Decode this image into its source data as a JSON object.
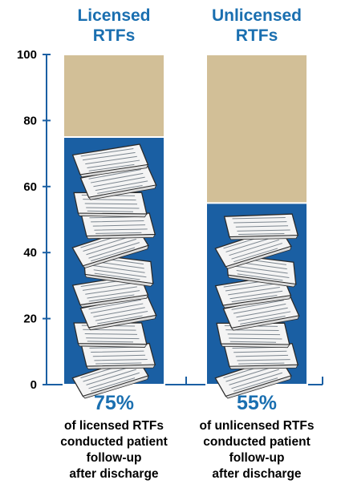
{
  "chart_data": {
    "type": "bar",
    "stacked_to": 100,
    "categories": [
      "Licensed RTFs",
      "Unlicensed RTFs"
    ],
    "column_titles": [
      [
        "Licensed",
        "RTFs"
      ],
      [
        "Unlicensed",
        "RTFs"
      ]
    ],
    "values": [
      75,
      55
    ],
    "value_labels": [
      "75%",
      "55%"
    ],
    "captions": [
      [
        "of licensed RTFs",
        "conducted patient",
        "follow-up",
        "after discharge"
      ],
      [
        "of unlicensed RTFs",
        "conducted patient",
        "follow-up",
        "after discharge"
      ]
    ],
    "ylim": [
      0,
      100
    ],
    "yticks": [
      0,
      20,
      40,
      60,
      80,
      100
    ],
    "ytick_labels": [
      "0",
      "20",
      "40",
      "60",
      "80",
      "100"
    ],
    "grid": false,
    "colors": {
      "filled": "#1a5fa3",
      "remainder": "#d2bf97",
      "accent_text": "#1a6fb0",
      "paper": "#f4f4f4",
      "paper_lines": "#7d8790"
    }
  }
}
